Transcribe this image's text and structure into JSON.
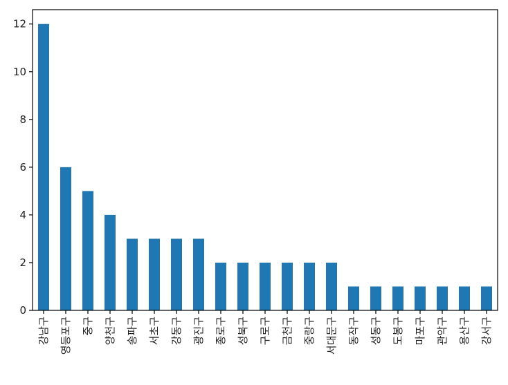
{
  "chart_data": {
    "type": "bar",
    "title": "",
    "xlabel": "",
    "ylabel": "",
    "categories": [
      "강남구",
      "영등포구",
      "중구",
      "양천구",
      "송파구",
      "서초구",
      "강동구",
      "광진구",
      "종로구",
      "성북구",
      "구로구",
      "금천구",
      "중랑구",
      "서대문구",
      "동작구",
      "성동구",
      "도봉구",
      "마포구",
      "관악구",
      "용산구",
      "강서구"
    ],
    "values": [
      12,
      6,
      5,
      4,
      3,
      3,
      3,
      3,
      2,
      2,
      2,
      2,
      2,
      2,
      1,
      1,
      1,
      1,
      1,
      1,
      1
    ],
    "ylim": [
      0,
      12.6
    ],
    "yticks": [
      0,
      2,
      4,
      6,
      8,
      10,
      12
    ],
    "grid": false,
    "bar_color": "#1f77b4",
    "frame_color": "#000000"
  }
}
